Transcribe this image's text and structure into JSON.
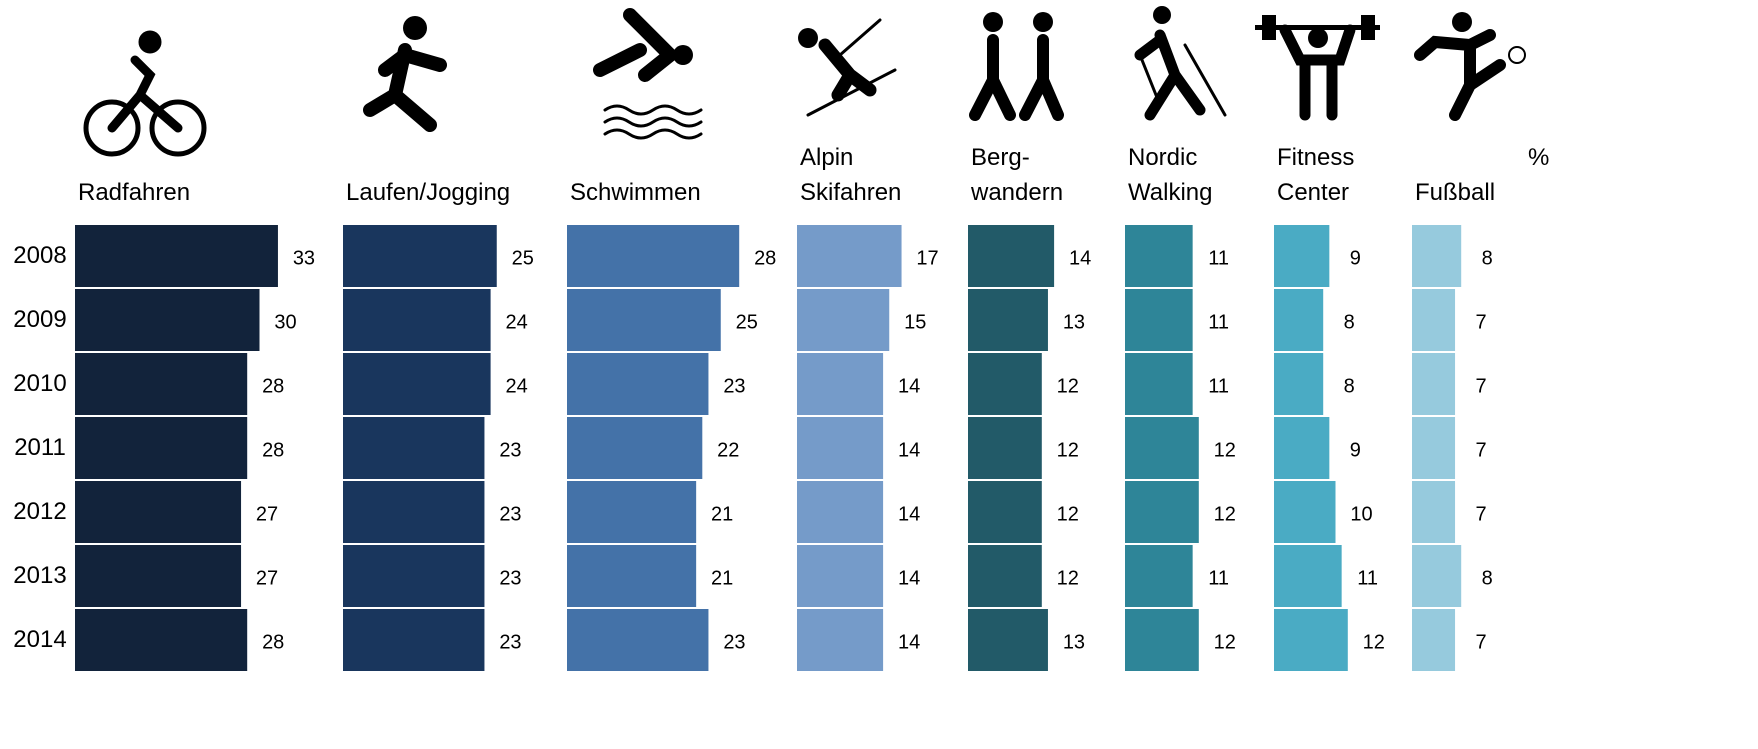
{
  "chart_data": {
    "type": "bar",
    "orientation": "horizontal",
    "unit": "%",
    "categories": [
      "2008",
      "2009",
      "2010",
      "2011",
      "2012",
      "2013",
      "2014"
    ],
    "series": [
      {
        "name": "Radfahren",
        "color": "#12233b",
        "values": [
          33,
          30,
          28,
          28,
          27,
          27,
          28
        ]
      },
      {
        "name": "Laufen/Jogging",
        "color": "#19365d",
        "values": [
          25,
          24,
          24,
          23,
          23,
          23,
          23
        ]
      },
      {
        "name": "Schwimmen",
        "color": "#4472a8",
        "values": [
          28,
          25,
          23,
          22,
          21,
          21,
          23
        ]
      },
      {
        "name": "Alpin\nSkifahren",
        "color": "#759bc9",
        "values": [
          17,
          15,
          14,
          14,
          14,
          14,
          14
        ]
      },
      {
        "name": "Berg-\nwandern",
        "color": "#225a68",
        "values": [
          14,
          13,
          12,
          12,
          12,
          12,
          13
        ]
      },
      {
        "name": "Nordic\nWalking",
        "color": "#2e8598",
        "values": [
          11,
          11,
          11,
          12,
          12,
          11,
          12
        ]
      },
      {
        "name": "Fitness\nCenter",
        "color": "#4aabc4",
        "values": [
          9,
          8,
          8,
          9,
          10,
          11,
          12
        ]
      },
      {
        "name": "Fußball",
        "color": "#96cadd",
        "values": [
          8,
          7,
          7,
          7,
          7,
          8,
          7
        ]
      }
    ]
  }
}
